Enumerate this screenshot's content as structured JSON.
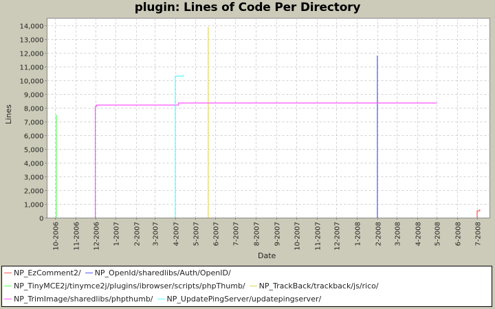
{
  "title": "plugin: Lines of Code Per Directory",
  "chart_data": {
    "type": "line",
    "title": "plugin: Lines of Code Per Directory",
    "xlabel": "Date",
    "ylabel": "Lines",
    "ylim": [
      0,
      14500
    ],
    "yticks": [
      "0",
      "1,000",
      "2,000",
      "3,000",
      "4,000",
      "5,000",
      "6,000",
      "7,000",
      "8,000",
      "9,000",
      "10,000",
      "11,000",
      "12,000",
      "13,000",
      "14,000"
    ],
    "xticks": [
      "10-2006",
      "11-2006",
      "12-2006",
      "1-2007",
      "2-2007",
      "3-2007",
      "4-2007",
      "5-2007",
      "6-2007",
      "7-2007",
      "8-2007",
      "9-2007",
      "10-2007",
      "11-2007",
      "12-2007",
      "1-2008",
      "2-2008",
      "3-2008",
      "4-2008",
      "5-2008",
      "6-2008",
      "7-2008"
    ],
    "grid": true,
    "legend_position": "bottom",
    "series": [
      {
        "name": "NP_EzComment2/",
        "color": "#ff5555",
        "points": [
          [
            "2008-07-01",
            0
          ],
          [
            "2008-07-01",
            500
          ],
          [
            "2008-07-05",
            600
          ]
        ]
      },
      {
        "name": "NP_OpenId/sharedlibs/Auth/OpenID/",
        "color": "#5555ff",
        "points": [
          [
            "2008-02-01",
            0
          ],
          [
            "2008-02-01",
            11800
          ]
        ]
      },
      {
        "name": "NP_TinyMCE2j/tinymce2j/plugins/ibrowser/scripts/phpThumb/",
        "color": "#55ff55",
        "points": [
          [
            "2006-10-03",
            0
          ],
          [
            "2006-10-03",
            7500
          ]
        ]
      },
      {
        "name": "NP_TrackBack/trackback/js/rico/",
        "color": "#e8d44d",
        "points": [
          [
            "2007-05-21",
            0
          ],
          [
            "2007-05-21",
            13900
          ]
        ]
      },
      {
        "name": "NP_TrimImage/sharedlibs/phpthumb/",
        "color": "#ff55ff",
        "points": [
          [
            "2006-12-01",
            0
          ],
          [
            "2006-12-01",
            8100
          ],
          [
            "2006-12-03",
            8200
          ],
          [
            "2007-04-03",
            8200
          ],
          [
            "2007-04-06",
            8350
          ],
          [
            "2008-05-01",
            8350
          ]
        ]
      },
      {
        "name": "NP_UpdatePingServer/updatepingserver/",
        "color": "#55ffff",
        "points": [
          [
            "2007-04-01",
            0
          ],
          [
            "2007-04-01",
            10300
          ],
          [
            "2007-04-13",
            10300
          ],
          [
            "2007-04-13",
            10400
          ]
        ]
      }
    ]
  },
  "legend": [
    [
      {
        "label": "NP_EzComment2/",
        "color": "#ff5555"
      },
      {
        "label": "NP_OpenId/sharedlibs/Auth/OpenID/",
        "color": "#5555ff"
      }
    ],
    [
      {
        "label": "NP_TinyMCE2j/tinymce2j/plugins/ibrowser/scripts/phpThumb/",
        "color": "#55ff55"
      },
      {
        "label": "NP_TrackBack/trackback/js/rico/",
        "color": "#e8d44d"
      }
    ],
    [
      {
        "label": "NP_TrimImage/sharedlibs/phpthumb/",
        "color": "#ff55ff"
      },
      {
        "label": "NP_UpdatePingServer/updatepingserver/",
        "color": "#55ffff"
      }
    ]
  ]
}
